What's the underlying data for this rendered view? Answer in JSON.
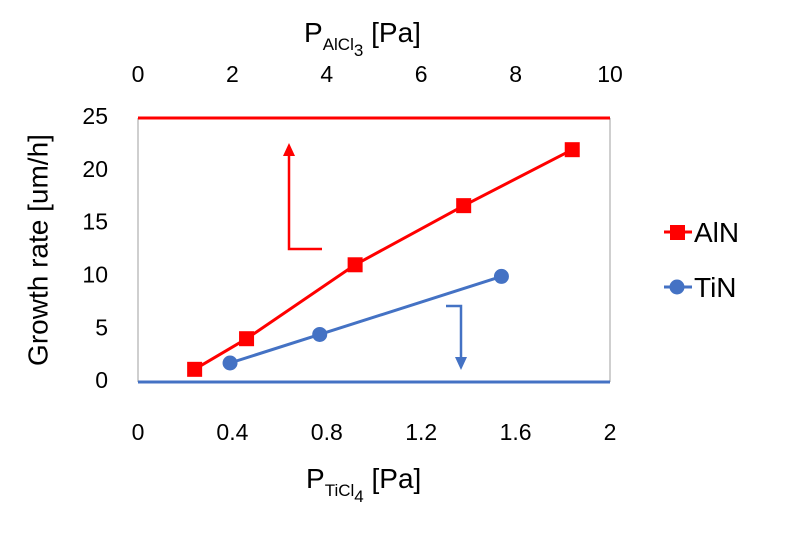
{
  "chart_data": {
    "type": "line",
    "colors": {
      "AlN": "#ff0000",
      "TiN": "#4472c4"
    },
    "ylabel": "Growth rate [um/h]",
    "ylim": [
      0,
      25
    ],
    "yticks": [
      "0",
      "5",
      "10",
      "15",
      "20",
      "25"
    ],
    "bottom_axis": {
      "label_main": "P",
      "label_sub": "TiCl",
      "label_subsub": "4",
      "label_unit": " [Pa]",
      "lim": [
        0,
        2
      ],
      "ticks": [
        "0",
        "0.4",
        "0.8",
        "1.2",
        "1.6",
        "2"
      ]
    },
    "top_axis": {
      "label_main": "P",
      "label_sub": "AlCl",
      "label_subsub": "3",
      "label_unit": " [Pa]",
      "lim": [
        0,
        10
      ],
      "ticks": [
        "0",
        "2",
        "4",
        "6",
        "8",
        "10"
      ]
    },
    "series": [
      {
        "name": "AlN",
        "axis": "top",
        "marker": "square",
        "x": [
          1.2,
          2.3,
          4.6,
          6.9,
          9.2
        ],
        "y": [
          1.2,
          4.1,
          11.1,
          16.7,
          22.0
        ]
      },
      {
        "name": "TiN",
        "axis": "bottom",
        "marker": "circle",
        "x": [
          0.39,
          0.77,
          1.54
        ],
        "y": [
          1.8,
          4.5,
          10.0
        ]
      }
    ],
    "legend_position": "right",
    "grid": false
  }
}
